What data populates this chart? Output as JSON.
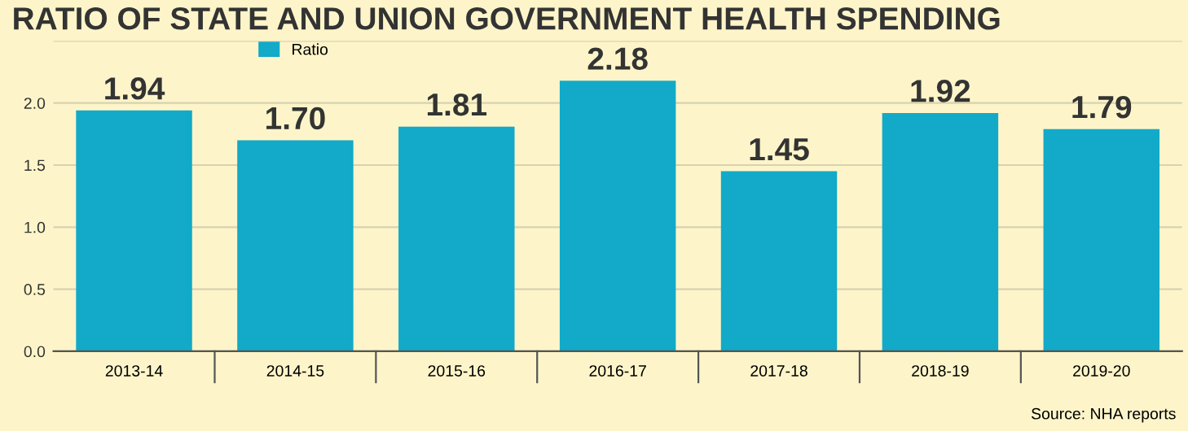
{
  "chart_data": {
    "type": "bar",
    "title": "RATIO OF STATE AND UNION GOVERNMENT HEALTH SPENDING",
    "categories": [
      "2013-14",
      "2014-15",
      "2015-16",
      "2016-17",
      "2017-18",
      "2018-19",
      "2019-20"
    ],
    "series": [
      {
        "name": "Ratio",
        "color": "#12aac8",
        "values": [
          1.94,
          1.7,
          1.81,
          2.18,
          1.45,
          1.92,
          1.79
        ]
      }
    ],
    "ylim": [
      0,
      2.5
    ],
    "yticks": [
      {
        "value": 0,
        "label": "0.0"
      },
      {
        "value": 0.5,
        "label": "0.5"
      },
      {
        "value": 1,
        "label": "1.0"
      },
      {
        "value": 1.5,
        "label": "1.5"
      },
      {
        "value": 2,
        "label": "2.0"
      },
      {
        "value": 2.5,
        "label": null
      }
    ],
    "value_labels": [
      "1.94",
      "1.70",
      "1.81",
      "2.18",
      "1.45",
      "1.92",
      "1.79"
    ],
    "grid": "y",
    "legend": "top left",
    "annotations": [
      "Source: NHA reports"
    ]
  }
}
